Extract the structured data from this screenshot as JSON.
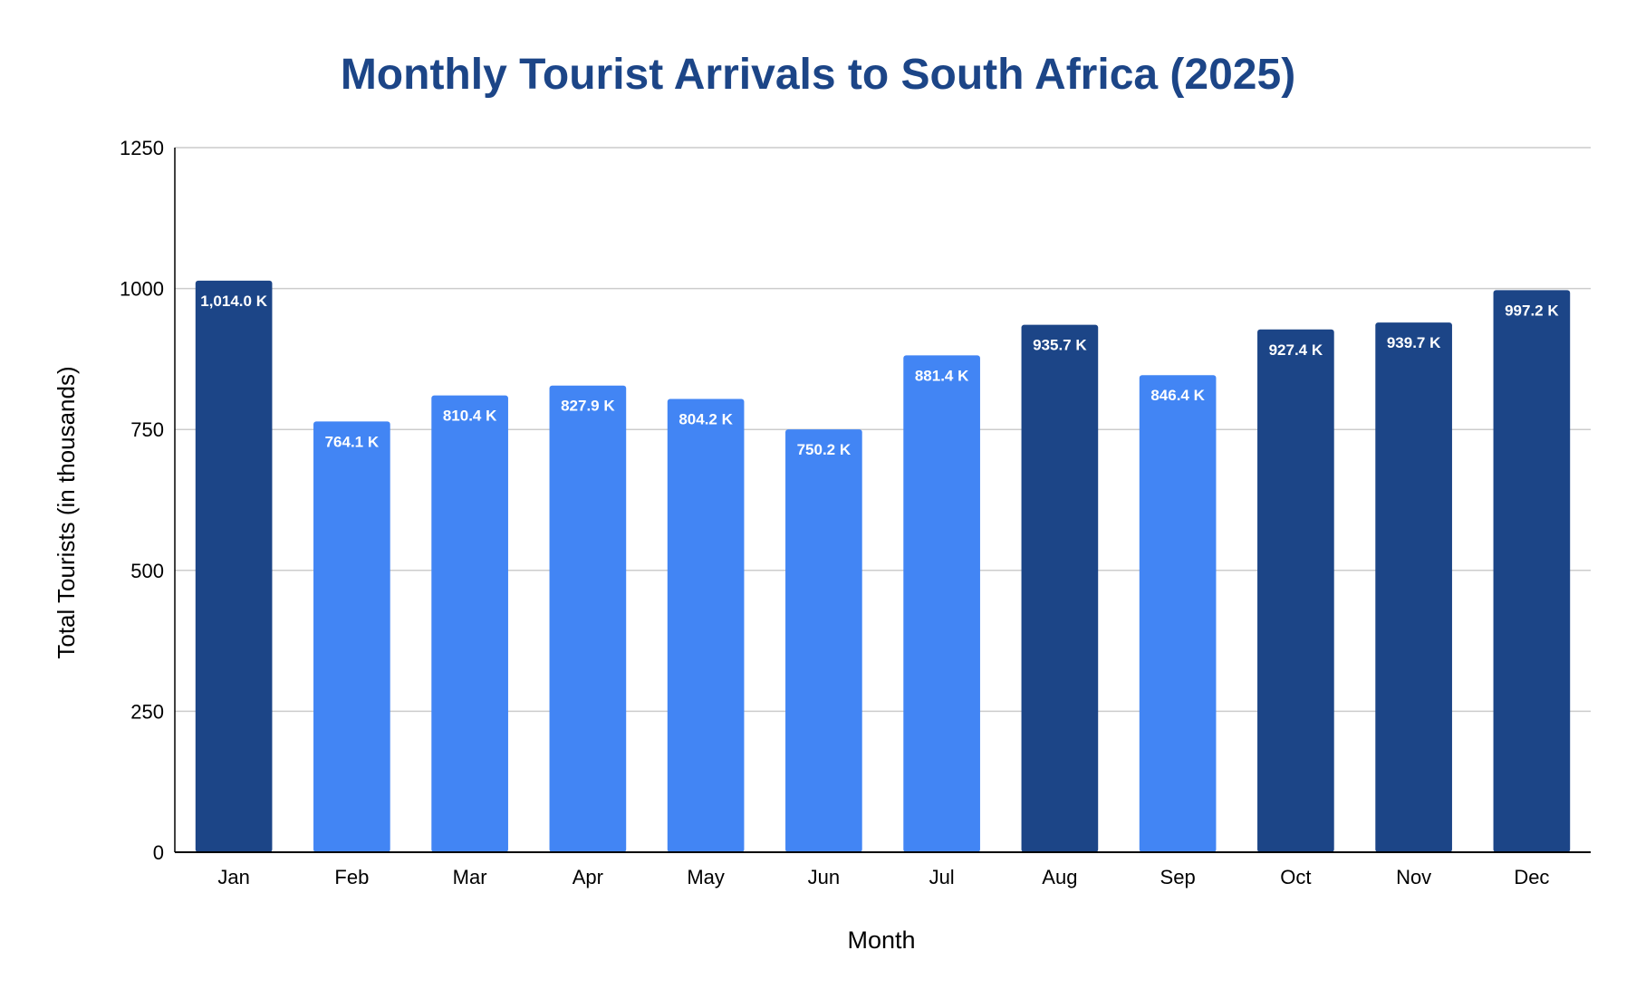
{
  "chart_data": {
    "type": "bar",
    "title": "Monthly Tourist Arrivals to South Africa (2025)",
    "xlabel": "Month",
    "ylabel": "Total Tourists (in thousands)",
    "ylim": [
      0,
      1250
    ],
    "yticks": [
      0,
      250,
      500,
      750,
      1000,
      1250
    ],
    "grid": true,
    "legend": "none",
    "categories": [
      "Jan",
      "Feb",
      "Mar",
      "Apr",
      "May",
      "Jun",
      "Jul",
      "Aug",
      "Sep",
      "Oct",
      "Nov",
      "Dec"
    ],
    "values": [
      1014.0,
      764.1,
      810.4,
      827.9,
      804.2,
      750.2,
      881.4,
      935.7,
      846.4,
      927.4,
      939.7,
      997.2
    ],
    "data_labels": [
      "1,014.0 K",
      "764.1 K",
      "810.4 K",
      "827.9 K",
      "804.2 K",
      "750.2 K",
      "881.4 K",
      "935.7 K",
      "846.4 K",
      "927.4 K",
      "939.7 K",
      "997.2 K"
    ],
    "bar_colors": [
      "#1c4587",
      "#4285f4",
      "#4285f4",
      "#4285f4",
      "#4285f4",
      "#4285f4",
      "#4285f4",
      "#1c4587",
      "#4285f4",
      "#1c4587",
      "#1c4587",
      "#1c4587"
    ],
    "colors": {
      "title": "#1c4587",
      "dark_bar": "#1c4587",
      "light_bar": "#4285f4",
      "grid": "#cccccc",
      "axis": "#000000",
      "data_label": "#ffffff"
    }
  }
}
